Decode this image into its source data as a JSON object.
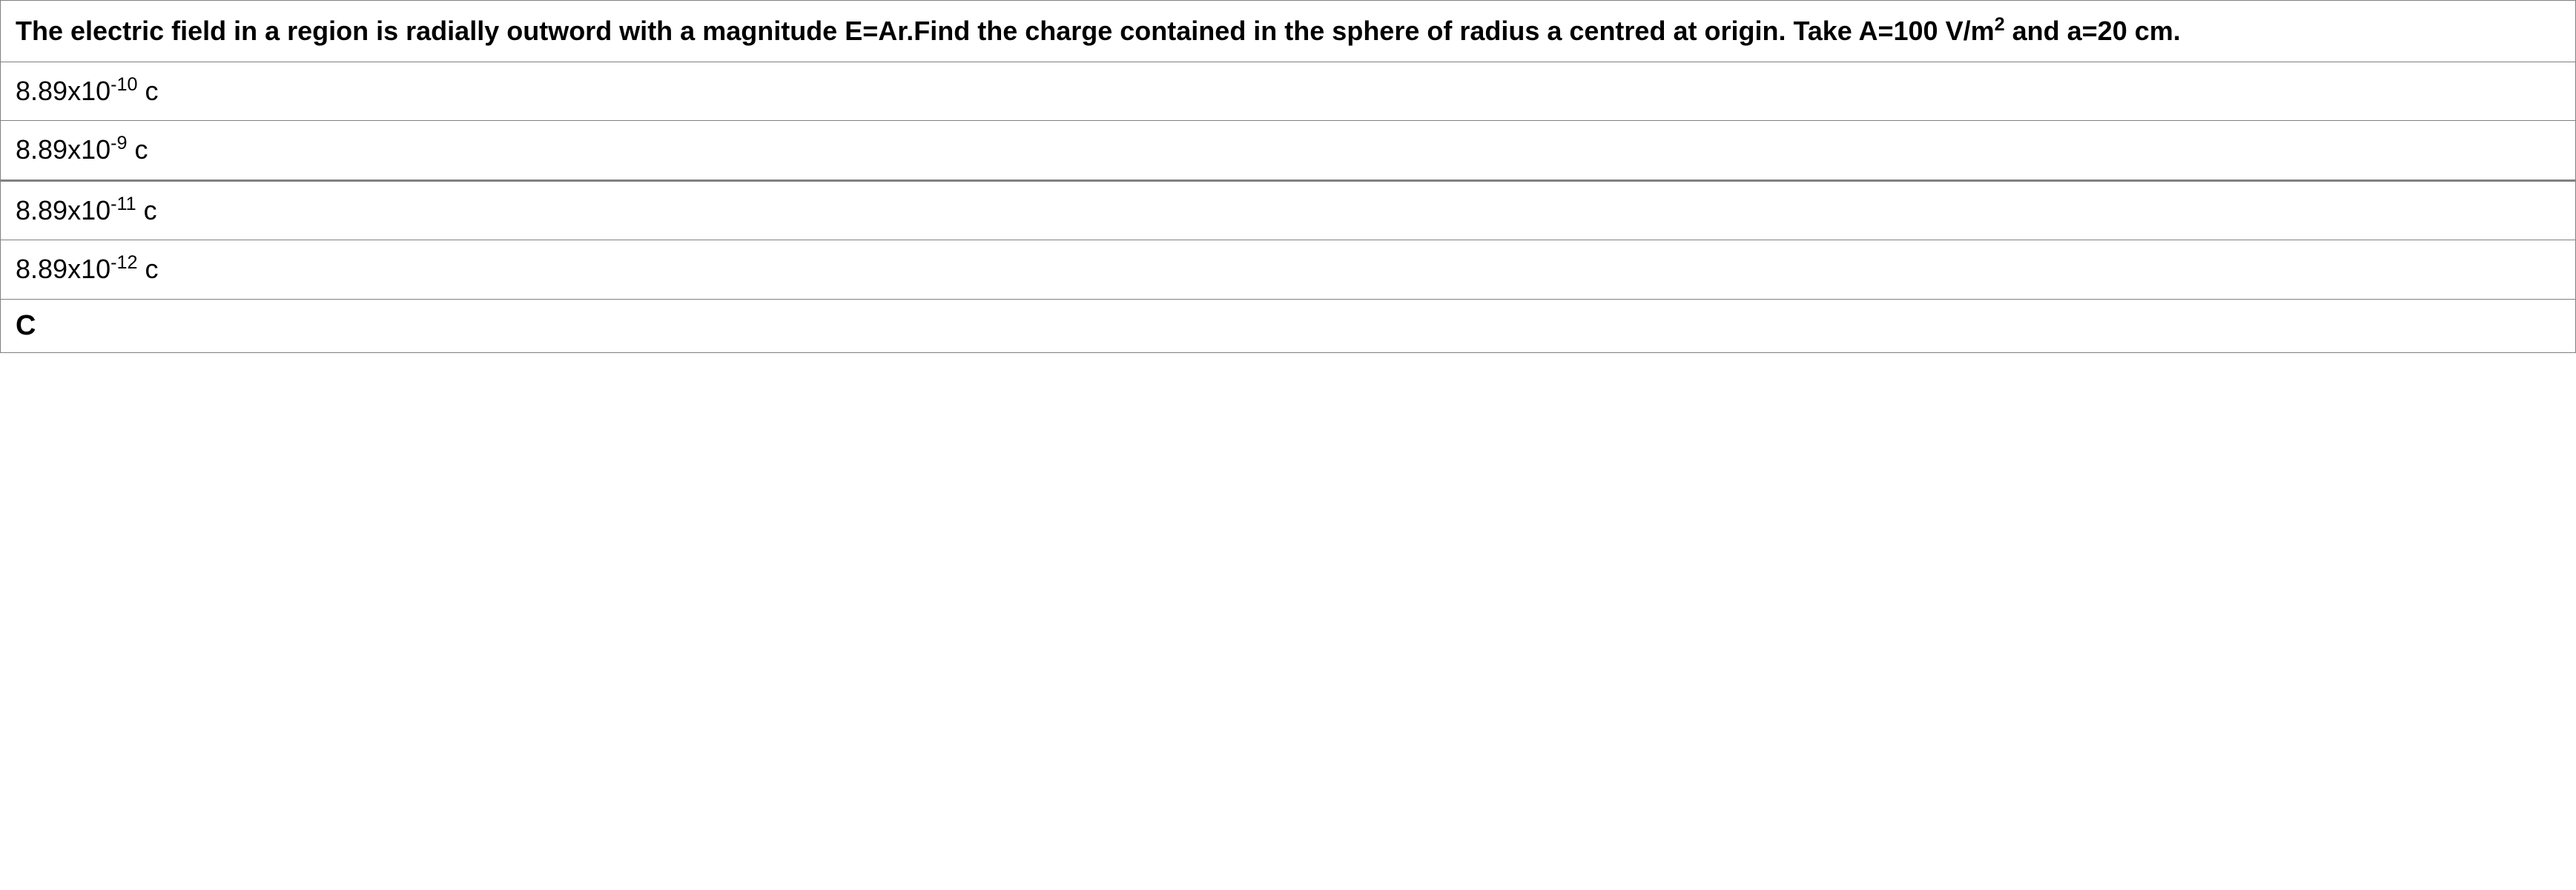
{
  "table": {
    "border_color": "#808080",
    "background_color": "#ffffff",
    "text_color": "#000000",
    "question": {
      "text_plain": "The electric field in a region is radially outword with a magnitude E=Ar.Find the charge contained in the sphere of radius a centred at origin. Take A=100 V/m² and a=20 cm.",
      "segments": [
        {
          "t": "text",
          "v": "The electric field in a region is radially outword with a magnitude E=Ar.Find the charge contained in the sphere of radius a centred at origin. Take A=100 V/m"
        },
        {
          "t": "sup",
          "v": "2"
        },
        {
          "t": "text",
          "v": " and a=20 cm."
        }
      ],
      "font_weight": "bold",
      "font_size_pt": 27
    },
    "options": [
      {
        "segments": [
          {
            "t": "text",
            "v": "8.89x10"
          },
          {
            "t": "sup",
            "v": "-10"
          },
          {
            "t": "text",
            "v": " c"
          }
        ],
        "plain": "8.89x10^-10 c"
      },
      {
        "segments": [
          {
            "t": "text",
            "v": "8.89x10"
          },
          {
            "t": "sup",
            "v": "-9"
          },
          {
            "t": "text",
            "v": " c"
          }
        ],
        "plain": "8.89x10^-9 c",
        "thick_divider_below": true
      },
      {
        "segments": [
          {
            "t": "text",
            "v": "8.89x10"
          },
          {
            "t": "sup",
            "v": "-11"
          },
          {
            "t": "text",
            "v": " c"
          }
        ],
        "plain": "8.89x10^-11 c"
      },
      {
        "segments": [
          {
            "t": "text",
            "v": "8.89x10"
          },
          {
            "t": "sup",
            "v": "-12"
          },
          {
            "t": "text",
            "v": " c"
          }
        ],
        "plain": "8.89x10^-12 c"
      }
    ],
    "answer": {
      "label": "C",
      "font_weight": "bold"
    }
  }
}
